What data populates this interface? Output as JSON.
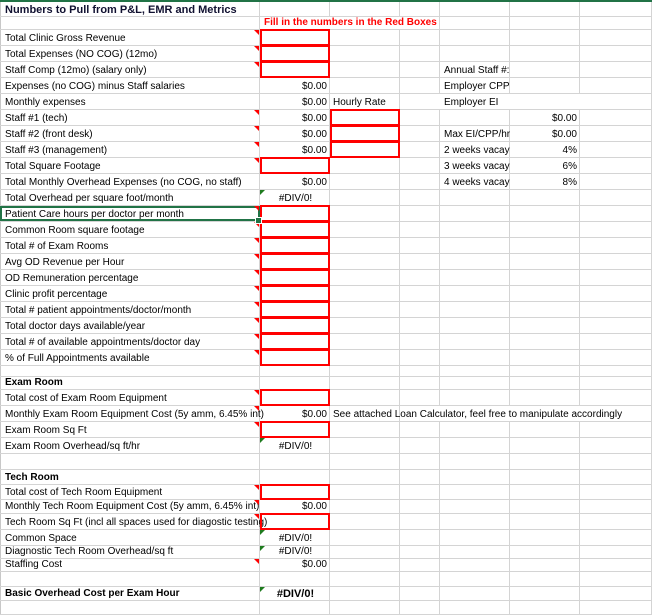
{
  "colors": {
    "input_box": "#ff0000",
    "note": "#ff0000",
    "selection": "#217346",
    "formula_flag": "#1e7b1e"
  },
  "sheet": {
    "title": "Numbers to Pull from P&L, EMR and Metrics",
    "instruction": "Fill in the numbers in the Red Boxes",
    "rows": [
      {
        "label": "Total Clinic Gross Revenue",
        "comment": true,
        "b_input": true
      },
      {
        "label": "Total Expenses (NO COG) (12mo)",
        "comment": true,
        "b_input": true
      },
      {
        "label": "Staff Comp (12mo) (salary only)",
        "comment": true,
        "b_input": true,
        "e": "Annual Staff #:"
      },
      {
        "label": "Expenses (no COG) minus Staff salaries",
        "b": "$0.00",
        "e": "Employer CPP"
      },
      {
        "label": "Monthly expenses",
        "b": "$0.00",
        "c": "Hourly Rate",
        "e": "Employer EI"
      },
      {
        "label": "Staff #1 (tech)",
        "comment": true,
        "b": "$0.00",
        "c_input": true,
        "f": "$0.00"
      },
      {
        "label": "Staff #2 (front desk)",
        "comment": true,
        "b": "$0.00",
        "c_input": true,
        "e": "Max EI/CPP/hr",
        "f": "$0.00"
      },
      {
        "label": "Staff #3 (management)",
        "comment": true,
        "b": "$0.00",
        "c_input": true,
        "e": "2 weeks vacay",
        "f": "4%"
      },
      {
        "label": "Total Square Footage",
        "comment": true,
        "b_input": true,
        "e": "3 weeks vacay",
        "f": "6%"
      },
      {
        "label": "Total Monthly Overhead Expenses (no COG, no staff)",
        "b": "$0.00",
        "e": "4 weeks vacay",
        "f": "8%"
      },
      {
        "label": "Total Overhead per square foot/month",
        "b": "#DIV/0!",
        "b_center": true,
        "flag": true
      },
      {
        "label": "Patient Care hours per doctor per month",
        "comment": true,
        "b_input": true,
        "selected": true
      },
      {
        "label": "Common Room square footage",
        "comment": true,
        "b_input": true
      },
      {
        "label": "Total # of Exam Rooms",
        "comment": true,
        "b_input": true
      },
      {
        "label": "Avg OD Revenue per Hour",
        "comment": true,
        "b_input": true
      },
      {
        "label": "OD Remuneration percentage",
        "comment": true,
        "b_input": true
      },
      {
        "label": "Clinic profit percentage",
        "comment": true,
        "b_input": true
      },
      {
        "label": "Total # patient appointments/doctor/month",
        "comment": true,
        "b_input": true
      },
      {
        "label": "Total doctor days available/year",
        "comment": true,
        "b_input": true
      },
      {
        "label": "Total # of available appointments/doctor day",
        "comment": true,
        "b_input": true
      },
      {
        "label": "% of Full Appointments available",
        "comment": true,
        "b_input": true
      },
      {
        "label": ""
      },
      {
        "label": "Exam Room",
        "bold": true
      },
      {
        "label": "Total cost of Exam Room Equipment",
        "comment": true,
        "b_input": true
      },
      {
        "label": "Monthly Exam Room Equipment Cost (5y amm, 6.45% int)",
        "comment": true,
        "b": "$0.00",
        "c": "See attached Loan Calculator, feel free to manipulate accordingly"
      },
      {
        "label": "Exam Room Sq Ft",
        "comment": true,
        "b_input": true
      },
      {
        "label": "Exam Room Overhead/sq ft/hr",
        "b": "#DIV/0!",
        "b_center": true,
        "flag": true
      },
      {
        "label": ""
      },
      {
        "label": "Tech Room",
        "bold": true
      },
      {
        "label": "Total cost of Tech Room Equipment",
        "comment": true,
        "b_input": true
      },
      {
        "label": "Monthly Tech Room Equipment Cost (5y amm, 6.45% int)",
        "comment": true,
        "b": "$0.00"
      },
      {
        "label": "Tech Room Sq Ft (incl all spaces used for diagostic testing)",
        "comment": true,
        "b_input": true
      },
      {
        "label": "Common Space",
        "b": "#DIV/0!",
        "b_center": true,
        "flag": true
      },
      {
        "label": "Diagnostic Tech Room Overhead/sq ft",
        "b": "#DIV/0!",
        "b_center": true,
        "flag": true
      },
      {
        "label": "Staffing Cost",
        "comment": true,
        "b": "$0.00"
      },
      {
        "label": ""
      },
      {
        "label": "Basic Overhead Cost per Exam Hour",
        "bold": true,
        "b": "#DIV/0!",
        "b_center": true,
        "b_bold": true,
        "flag": true
      },
      {
        "label": ""
      }
    ]
  }
}
